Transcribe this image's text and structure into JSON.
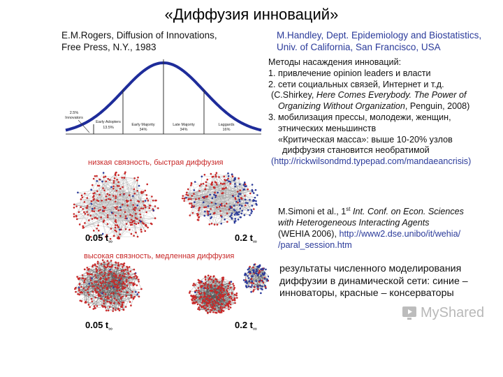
{
  "title": "«Диффузия инноваций»",
  "rogers": {
    "line1": "E.M.Rogers, Diffusion of Innovations,",
    "line2": "Free Press, N.Y., 1983"
  },
  "handley": {
    "line1": "M.Handley, Dept. Epidemiology and Biostatistics,",
    "line2": "Univ. of California, San Francisco, USA"
  },
  "methods": {
    "heading": "Методы насаждения инноваций:",
    "item1": "1. привлечение opinion leaders и власти",
    "item2": "2. сети социальных связей, Интернет и т.д.",
    "shirkey_prefix": "(C.Shirkey, ",
    "shirkey_italic1": "Here Comes Everybody. The Power of",
    "shirkey_italic2": "Organizing Without Organization",
    "shirkey_suffix": ", Penguin, 2008)",
    "item3a": "3. мобилизация прессы, молодежи, женщин,",
    "item3b": "этнических меньшинств",
    "mass1": "«Критическая масса»: выше 10-20% узлов",
    "mass2": "диффузия становится необратимой",
    "url": "(http://rickwilsondmd.typepad.com/mandaeancrisis)"
  },
  "bellcurve": {
    "segments": [
      {
        "name": "Innovators",
        "pct": "2.5%"
      },
      {
        "name": "Early Adopters",
        "pct": "13.5%"
      },
      {
        "name": "Early Majority",
        "pct": "34%"
      },
      {
        "name": "Late Majority",
        "pct": "34%"
      },
      {
        "name": "Laggards",
        "pct": "16%"
      }
    ]
  },
  "network": {
    "low_label": "низкая связность, быстрая диффузия",
    "high_label": "высокая связность, медленная диффузия",
    "t1": "0.05 t",
    "t2": "0.2 t",
    "t_sub": "∞"
  },
  "simoni": {
    "line1_prefix": "M.Simoni et al., 1",
    "line1_sup": "st",
    "line1_suffix": " Int. Conf. on Econ. Sciences",
    "line2": "with Heterogeneous Interacting Agents",
    "line3_prefix": "(WEHIA 2006), ",
    "line3_url": "http://www2.dse.unibo/it/wehia/",
    "line4": "/paral_session.htm"
  },
  "results": {
    "line1": "результаты численного моделирования",
    "line2": "диффузии в динамической сети: синие –",
    "line3": "инноваторы, красные – консерваторы"
  },
  "watermark": "MyShared",
  "colors": {
    "red": "#c82828",
    "blue": "#2a3a9a"
  }
}
